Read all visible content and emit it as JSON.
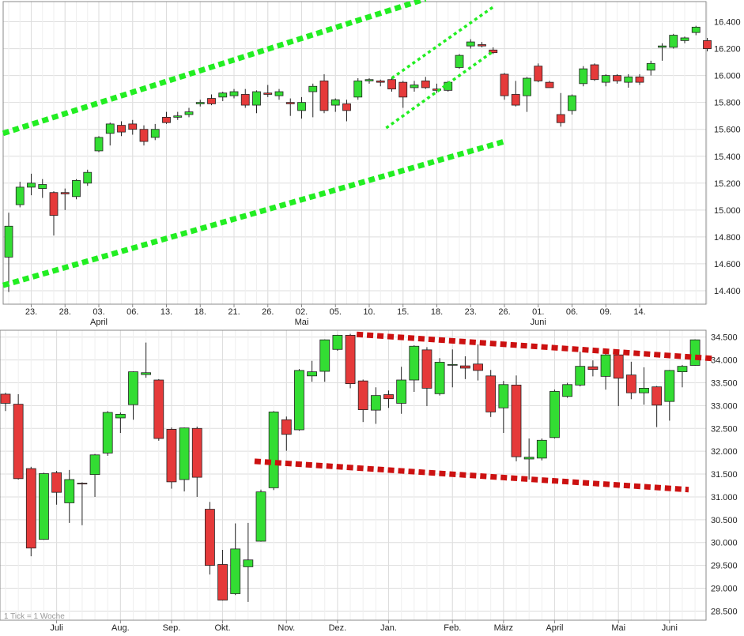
{
  "colors": {
    "up": "#33dd33",
    "down": "#e53a3a",
    "upper_channel": "#22ee22",
    "lower_channel": "#cc1111",
    "grid": "#dddddd",
    "frame": "#888888"
  },
  "chart_data": [
    {
      "type": "candlestick",
      "name": "daily",
      "ylim": [
        14300,
        16550
      ],
      "y_ticks": [
        "16.400",
        "16.200",
        "16.000",
        "15.800",
        "15.600",
        "15.400",
        "15.200",
        "15.000",
        "14.800",
        "14.600",
        "14.400"
      ],
      "y_tick_values": [
        16400,
        16200,
        16000,
        15800,
        15600,
        15400,
        15200,
        15000,
        14800,
        14600,
        14400
      ],
      "x_tick_labels": [
        "23.",
        "28.",
        "03.",
        "06.",
        "13.",
        "18.",
        "21.",
        "26.",
        "02.",
        "05.",
        "10.",
        "15.",
        "18.",
        "23.",
        "26.",
        "01.",
        "06.",
        "09.",
        "14."
      ],
      "x_tick_index": [
        2,
        5,
        8,
        11,
        14,
        17,
        20,
        23,
        26,
        29,
        32,
        35,
        38,
        41,
        44,
        47,
        50,
        53,
        56
      ],
      "month_labels": [
        "April",
        "Mai",
        "Juni"
      ],
      "month_index": [
        8,
        26,
        47
      ],
      "candles": [
        {
          "o": 14650,
          "h": 14980,
          "l": 14390,
          "c": 14880
        },
        {
          "o": 15040,
          "h": 15210,
          "l": 15020,
          "c": 15170
        },
        {
          "o": 15170,
          "h": 15270,
          "l": 15110,
          "c": 15200
        },
        {
          "o": 15160,
          "h": 15230,
          "l": 15090,
          "c": 15190
        },
        {
          "o": 15130,
          "h": 15140,
          "l": 14810,
          "c": 14960
        },
        {
          "o": 15130,
          "h": 15160,
          "l": 15000,
          "c": 15120
        },
        {
          "o": 15100,
          "h": 15230,
          "l": 15080,
          "c": 15220
        },
        {
          "o": 15200,
          "h": 15300,
          "l": 15180,
          "c": 15280
        },
        {
          "o": 15440,
          "h": 15550,
          "l": 15430,
          "c": 15540
        },
        {
          "o": 15570,
          "h": 15650,
          "l": 15480,
          "c": 15640
        },
        {
          "o": 15630,
          "h": 15660,
          "l": 15550,
          "c": 15580
        },
        {
          "o": 15640,
          "h": 15670,
          "l": 15560,
          "c": 15600
        },
        {
          "o": 15600,
          "h": 15630,
          "l": 15480,
          "c": 15510
        },
        {
          "o": 15540,
          "h": 15640,
          "l": 15520,
          "c": 15600
        },
        {
          "o": 15690,
          "h": 15730,
          "l": 15640,
          "c": 15650
        },
        {
          "o": 15690,
          "h": 15730,
          "l": 15670,
          "c": 15700
        },
        {
          "o": 15710,
          "h": 15760,
          "l": 15690,
          "c": 15730
        },
        {
          "o": 15790,
          "h": 15820,
          "l": 15770,
          "c": 15800
        },
        {
          "o": 15830,
          "h": 15860,
          "l": 15780,
          "c": 15790
        },
        {
          "o": 15840,
          "h": 15880,
          "l": 15810,
          "c": 15870
        },
        {
          "o": 15850,
          "h": 15900,
          "l": 15830,
          "c": 15880
        },
        {
          "o": 15860,
          "h": 15900,
          "l": 15760,
          "c": 15780
        },
        {
          "o": 15780,
          "h": 15890,
          "l": 15720,
          "c": 15880
        },
        {
          "o": 15870,
          "h": 15930,
          "l": 15840,
          "c": 15860
        },
        {
          "o": 15850,
          "h": 15900,
          "l": 15820,
          "c": 15880
        },
        {
          "o": 15800,
          "h": 15830,
          "l": 15700,
          "c": 15790
        },
        {
          "o": 15740,
          "h": 15840,
          "l": 15680,
          "c": 15800
        },
        {
          "o": 15880,
          "h": 15940,
          "l": 15690,
          "c": 15920
        },
        {
          "o": 15960,
          "h": 16010,
          "l": 15720,
          "c": 15740
        },
        {
          "o": 15780,
          "h": 15830,
          "l": 15730,
          "c": 15820
        },
        {
          "o": 15790,
          "h": 15820,
          "l": 15660,
          "c": 15740
        },
        {
          "o": 15840,
          "h": 15980,
          "l": 15820,
          "c": 15960
        },
        {
          "o": 15960,
          "h": 15980,
          "l": 15940,
          "c": 15970
        },
        {
          "o": 15960,
          "h": 15970,
          "l": 15920,
          "c": 15950
        },
        {
          "o": 15970,
          "h": 15990,
          "l": 15880,
          "c": 15900
        },
        {
          "o": 15950,
          "h": 15960,
          "l": 15760,
          "c": 15840
        },
        {
          "o": 15910,
          "h": 15960,
          "l": 15880,
          "c": 15930
        },
        {
          "o": 15960,
          "h": 15990,
          "l": 15900,
          "c": 15910
        },
        {
          "o": 15900,
          "h": 15940,
          "l": 15870,
          "c": 15890
        },
        {
          "o": 15890,
          "h": 15960,
          "l": 15880,
          "c": 15950
        },
        {
          "o": 16060,
          "h": 16160,
          "l": 16050,
          "c": 16150
        },
        {
          "o": 16220,
          "h": 16270,
          "l": 16200,
          "c": 16250
        },
        {
          "o": 16230,
          "h": 16250,
          "l": 16210,
          "c": 16220
        },
        {
          "o": 16190,
          "h": 16210,
          "l": 16160,
          "c": 16170
        },
        {
          "o": 16010,
          "h": 16020,
          "l": 15820,
          "c": 15850
        },
        {
          "o": 15860,
          "h": 15960,
          "l": 15770,
          "c": 15780
        },
        {
          "o": 15850,
          "h": 15990,
          "l": 15730,
          "c": 15980
        },
        {
          "o": 16070,
          "h": 16090,
          "l": 15950,
          "c": 15960
        },
        {
          "o": 15950,
          "h": 15960,
          "l": 15910,
          "c": 15910
        },
        {
          "o": 15710,
          "h": 15870,
          "l": 15620,
          "c": 15650
        },
        {
          "o": 15740,
          "h": 15860,
          "l": 15710,
          "c": 15850
        },
        {
          "o": 15940,
          "h": 16070,
          "l": 15920,
          "c": 16050
        },
        {
          "o": 16080,
          "h": 16090,
          "l": 15960,
          "c": 15970
        },
        {
          "o": 15950,
          "h": 16010,
          "l": 15920,
          "c": 16000
        },
        {
          "o": 16000,
          "h": 16010,
          "l": 15940,
          "c": 15960
        },
        {
          "o": 15950,
          "h": 16010,
          "l": 15910,
          "c": 15990
        },
        {
          "o": 15990,
          "h": 16010,
          "l": 15930,
          "c": 15950
        },
        {
          "o": 16040,
          "h": 16110,
          "l": 16000,
          "c": 16090
        },
        {
          "o": 16210,
          "h": 16240,
          "l": 16110,
          "c": 16220
        },
        {
          "o": 16210,
          "h": 16310,
          "l": 16200,
          "c": 16300
        },
        {
          "o": 16260,
          "h": 16290,
          "l": 16240,
          "c": 16280
        },
        {
          "o": 16320,
          "h": 16370,
          "l": 16300,
          "c": 16360
        },
        {
          "o": 16260,
          "h": 16280,
          "l": 16180,
          "c": 16200
        }
      ],
      "trend_lines": [
        {
          "color": "upper_channel",
          "dash": "heavy",
          "from": [
            -0.5,
            15570
          ],
          "to": [
            37,
            16570
          ]
        },
        {
          "color": "upper_channel",
          "dash": "heavy",
          "from": [
            -0.5,
            14440
          ],
          "to": [
            44,
            15510
          ]
        },
        {
          "color": "upper_channel",
          "dash": "fine",
          "from": [
            34,
            15980
          ],
          "to": [
            43,
            16510
          ]
        },
        {
          "color": "upper_channel",
          "dash": "fine",
          "from": [
            33.5,
            15610
          ],
          "to": [
            43,
            16180
          ]
        }
      ]
    },
    {
      "type": "candlestick",
      "name": "weekly",
      "ylim": [
        28300,
        34650
      ],
      "y_ticks": [
        "34.500",
        "34.000",
        "33.500",
        "33.000",
        "32.500",
        "32.000",
        "31.500",
        "31.000",
        "30.500",
        "30.000",
        "29.500",
        "29.000",
        "28.500"
      ],
      "y_tick_values": [
        34500,
        34000,
        33500,
        33000,
        32500,
        32000,
        31500,
        31000,
        30500,
        30000,
        29500,
        29000,
        28500
      ],
      "x_tick_labels": [
        "Juli",
        "Aug.",
        "Sep.",
        "Okt.",
        "Nov.",
        "Dez.",
        "Jan.",
        "Feb.",
        "März",
        "April",
        "Mai",
        "Juni"
      ],
      "x_tick_index": [
        4,
        9,
        13,
        17,
        22,
        26,
        30,
        35,
        39,
        43,
        48,
        52
      ],
      "note": "1 Tick = 1 Woche",
      "candles": [
        {
          "o": 33250,
          "h": 33280,
          "l": 32880,
          "c": 33050
        },
        {
          "o": 33030,
          "h": 33250,
          "l": 31380,
          "c": 31400
        },
        {
          "o": 31620,
          "h": 31660,
          "l": 29700,
          "c": 29880
        },
        {
          "o": 30070,
          "h": 31530,
          "l": 30060,
          "c": 31510
        },
        {
          "o": 31530,
          "h": 31570,
          "l": 30830,
          "c": 31100
        },
        {
          "o": 30870,
          "h": 31590,
          "l": 30430,
          "c": 31380
        },
        {
          "o": 31300,
          "h": 31320,
          "l": 30380,
          "c": 31290
        },
        {
          "o": 31490,
          "h": 31940,
          "l": 31000,
          "c": 31920
        },
        {
          "o": 31960,
          "h": 32880,
          "l": 31900,
          "c": 32850
        },
        {
          "o": 32730,
          "h": 32850,
          "l": 32400,
          "c": 32810
        },
        {
          "o": 33020,
          "h": 33750,
          "l": 32690,
          "c": 33740
        },
        {
          "o": 33680,
          "h": 34380,
          "l": 33610,
          "c": 33720
        },
        {
          "o": 33560,
          "h": 33580,
          "l": 32230,
          "c": 32280
        },
        {
          "o": 32480,
          "h": 32520,
          "l": 31180,
          "c": 31330
        },
        {
          "o": 31380,
          "h": 32520,
          "l": 31120,
          "c": 32510
        },
        {
          "o": 32500,
          "h": 32540,
          "l": 31000,
          "c": 31430
        },
        {
          "o": 30730,
          "h": 30890,
          "l": 29300,
          "c": 29500
        },
        {
          "o": 29520,
          "h": 29840,
          "l": 28730,
          "c": 28740
        },
        {
          "o": 28880,
          "h": 30420,
          "l": 28850,
          "c": 29860
        },
        {
          "o": 29470,
          "h": 30430,
          "l": 28700,
          "c": 29620
        },
        {
          "o": 30030,
          "h": 31160,
          "l": 30020,
          "c": 31110
        },
        {
          "o": 31200,
          "h": 32880,
          "l": 31150,
          "c": 32860
        },
        {
          "o": 32690,
          "h": 32760,
          "l": 32010,
          "c": 32370
        },
        {
          "o": 32470,
          "h": 33800,
          "l": 32450,
          "c": 33770
        },
        {
          "o": 33650,
          "h": 33980,
          "l": 33520,
          "c": 33740
        },
        {
          "o": 33750,
          "h": 34450,
          "l": 33520,
          "c": 34440
        },
        {
          "o": 34230,
          "h": 34550,
          "l": 34200,
          "c": 34540
        },
        {
          "o": 34540,
          "h": 34570,
          "l": 33380,
          "c": 33480
        },
        {
          "o": 33540,
          "h": 33570,
          "l": 32640,
          "c": 32910
        },
        {
          "o": 32900,
          "h": 33400,
          "l": 32600,
          "c": 33220
        },
        {
          "o": 33240,
          "h": 33330,
          "l": 32950,
          "c": 33150
        },
        {
          "o": 33050,
          "h": 33850,
          "l": 32820,
          "c": 33560
        },
        {
          "o": 33560,
          "h": 34320,
          "l": 33300,
          "c": 34300
        },
        {
          "o": 34220,
          "h": 34280,
          "l": 32990,
          "c": 33380
        },
        {
          "o": 33260,
          "h": 34040,
          "l": 33220,
          "c": 33950
        },
        {
          "o": 33900,
          "h": 34230,
          "l": 33400,
          "c": 33900
        },
        {
          "o": 33870,
          "h": 34080,
          "l": 33580,
          "c": 33820
        },
        {
          "o": 33910,
          "h": 34340,
          "l": 33550,
          "c": 33770
        },
        {
          "o": 33650,
          "h": 33780,
          "l": 32750,
          "c": 32860
        },
        {
          "o": 32950,
          "h": 33540,
          "l": 32400,
          "c": 33460
        },
        {
          "o": 33450,
          "h": 33660,
          "l": 31780,
          "c": 31880
        },
        {
          "o": 31830,
          "h": 32280,
          "l": 31380,
          "c": 31870
        },
        {
          "o": 31850,
          "h": 32280,
          "l": 31800,
          "c": 32240
        },
        {
          "o": 32300,
          "h": 33350,
          "l": 32280,
          "c": 33310
        },
        {
          "o": 33200,
          "h": 33500,
          "l": 33170,
          "c": 33460
        },
        {
          "o": 33450,
          "h": 34180,
          "l": 33420,
          "c": 33860
        },
        {
          "o": 33850,
          "h": 33990,
          "l": 33640,
          "c": 33790
        },
        {
          "o": 33640,
          "h": 34160,
          "l": 33350,
          "c": 34110
        },
        {
          "o": 34110,
          "h": 34150,
          "l": 32990,
          "c": 33600
        },
        {
          "o": 33670,
          "h": 33960,
          "l": 33140,
          "c": 33280
        },
        {
          "o": 33280,
          "h": 33840,
          "l": 33020,
          "c": 33380
        },
        {
          "o": 33410,
          "h": 33430,
          "l": 32530,
          "c": 33010
        },
        {
          "o": 33090,
          "h": 33780,
          "l": 32670,
          "c": 33770
        },
        {
          "o": 33740,
          "h": 33890,
          "l": 33400,
          "c": 33860
        },
        {
          "o": 33880,
          "h": 34450,
          "l": 33870,
          "c": 34440
        }
      ],
      "trend_lines": [
        {
          "color": "lower_channel",
          "dash": "heavy",
          "from": [
            27.5,
            34560
          ],
          "to": [
            55.5,
            34030
          ]
        },
        {
          "color": "lower_channel",
          "dash": "heavy",
          "from": [
            19.5,
            31780
          ],
          "to": [
            53.5,
            31160
          ]
        }
      ]
    }
  ]
}
